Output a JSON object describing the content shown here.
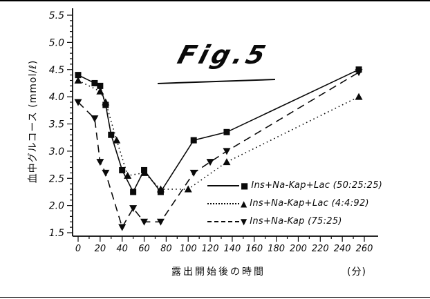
{
  "figure": {
    "title": "Fig.5"
  },
  "y_axis": {
    "label": "血中グルコース (mmol/ℓ)"
  },
  "x_axis": {
    "label": "露出開始後の時間",
    "unit": "(分)"
  },
  "legend": {
    "items": [
      {
        "marker": "■",
        "line_style": "solid",
        "label": "Ins+Na-Kap+Lac (50:25:25)"
      },
      {
        "marker": "▲",
        "line_style": "dotted",
        "label": "Ins+Na-Kap+Lac (4:4:92)"
      },
      {
        "marker": "▼",
        "line_style": "dashed",
        "label": "Ins+Na-Kap (75:25)"
      }
    ]
  },
  "chart_data": {
    "type": "line",
    "title": "Fig.5",
    "xlabel": "露出開始後の時間 (分)",
    "ylabel": "血中グルコース (mmol/ℓ)",
    "xlim": [
      0,
      260
    ],
    "ylim": [
      1.5,
      5.5
    ],
    "x_major_ticks": [
      0,
      20,
      40,
      60,
      80,
      100,
      120,
      140,
      160,
      180,
      200,
      220,
      240,
      260
    ],
    "x_minor_step": 10,
    "y_major_ticks": [
      1.5,
      2.0,
      2.5,
      3.0,
      3.5,
      4.0,
      4.5,
      5.0,
      5.5
    ],
    "y_minor_step": 0.1,
    "grid": false,
    "legend_position": "inside-right-bottom",
    "line_color": "#0a0a0a",
    "series": [
      {
        "name": "Ins+Na-Kap+Lac (50:25:25)",
        "line_style": "solid",
        "marker": "square",
        "points": [
          [
            0,
            4.4
          ],
          [
            15,
            4.25
          ],
          [
            20,
            4.2
          ],
          [
            25,
            3.85
          ],
          [
            30,
            3.3
          ],
          [
            40,
            2.65
          ],
          [
            50,
            2.25
          ],
          [
            60,
            2.65
          ],
          [
            75,
            2.25
          ],
          [
            105,
            3.2
          ],
          [
            135,
            3.35
          ],
          [
            255,
            4.5
          ]
        ]
      },
      {
        "name": "Ins+Na-Kap+Lac (4:4:92)",
        "line_style": "dotted",
        "marker": "triangle-up",
        "points": [
          [
            0,
            4.3
          ],
          [
            20,
            4.1
          ],
          [
            25,
            3.9
          ],
          [
            35,
            3.2
          ],
          [
            45,
            2.55
          ],
          [
            60,
            2.6
          ],
          [
            75,
            2.3
          ],
          [
            100,
            2.3
          ],
          [
            135,
            2.8
          ],
          [
            255,
            4.0
          ]
        ]
      },
      {
        "name": "Ins+Na-Kap (75:25)",
        "line_style": "dashed",
        "marker": "triangle-down",
        "points": [
          [
            0,
            3.9
          ],
          [
            15,
            3.6
          ],
          [
            20,
            2.8
          ],
          [
            25,
            2.6
          ],
          [
            40,
            1.6
          ],
          [
            50,
            1.95
          ],
          [
            60,
            1.7
          ],
          [
            75,
            1.7
          ],
          [
            105,
            2.6
          ],
          [
            120,
            2.8
          ],
          [
            135,
            3.0
          ],
          [
            255,
            4.45
          ]
        ]
      }
    ]
  }
}
